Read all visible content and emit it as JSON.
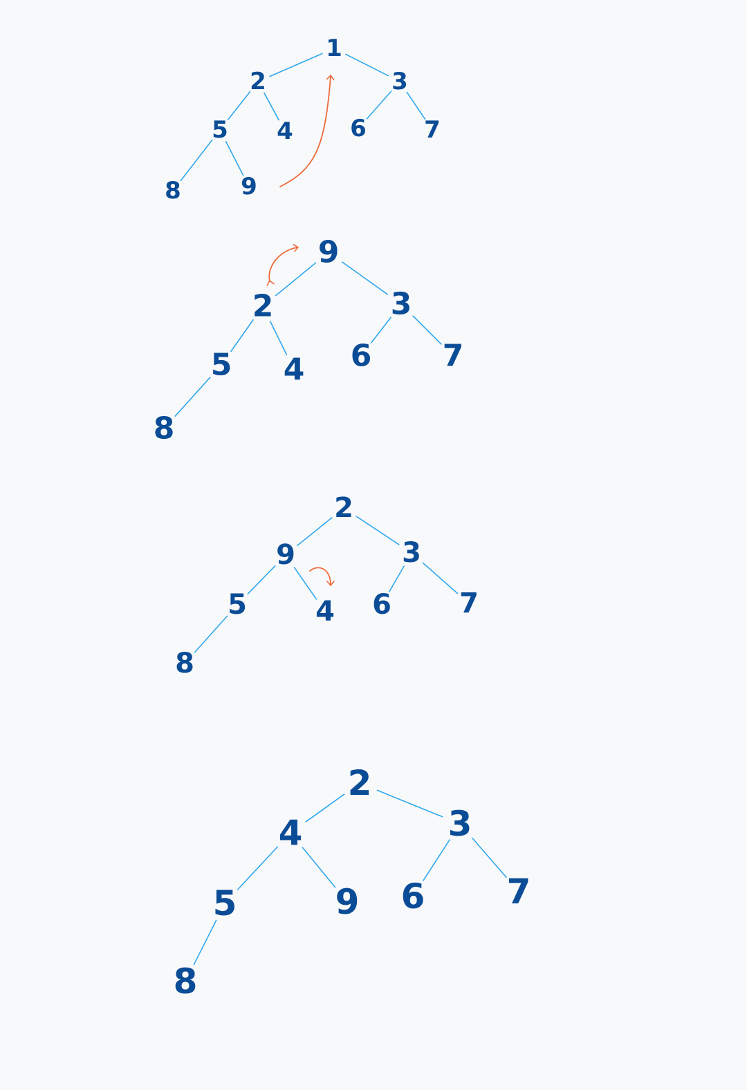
{
  "colors": {
    "background": "#f8f9fa",
    "node_text": "#0b4c96",
    "edge": "#2ea8ee",
    "arrow": "#ee6a3c"
  },
  "trees": [
    {
      "id": "tree-1",
      "nodes": [
        {
          "id": "n1",
          "label": "1"
        },
        {
          "id": "n2",
          "label": "2"
        },
        {
          "id": "n3",
          "label": "3"
        },
        {
          "id": "n5",
          "label": "5"
        },
        {
          "id": "n4",
          "label": "4"
        },
        {
          "id": "n6",
          "label": "6"
        },
        {
          "id": "n7",
          "label": "7"
        },
        {
          "id": "n8",
          "label": "8"
        },
        {
          "id": "n9",
          "label": "9"
        }
      ],
      "edges": [
        [
          "n1",
          "n2"
        ],
        [
          "n1",
          "n3"
        ],
        [
          "n2",
          "n5"
        ],
        [
          "n2",
          "n4"
        ],
        [
          "n3",
          "n6"
        ],
        [
          "n3",
          "n7"
        ],
        [
          "n5",
          "n8"
        ],
        [
          "n5",
          "n9"
        ]
      ],
      "annotation": "move-last-to-root"
    },
    {
      "id": "tree-2",
      "nodes": [
        {
          "id": "n9",
          "label": "9"
        },
        {
          "id": "n2",
          "label": "2"
        },
        {
          "id": "n3",
          "label": "3"
        },
        {
          "id": "n5",
          "label": "5"
        },
        {
          "id": "n4",
          "label": "4"
        },
        {
          "id": "n6",
          "label": "6"
        },
        {
          "id": "n7",
          "label": "7"
        },
        {
          "id": "n8",
          "label": "8"
        }
      ],
      "edges": [
        [
          "n9",
          "n2"
        ],
        [
          "n9",
          "n3"
        ],
        [
          "n2",
          "n5"
        ],
        [
          "n2",
          "n4"
        ],
        [
          "n3",
          "n6"
        ],
        [
          "n3",
          "n7"
        ],
        [
          "n5",
          "n8"
        ]
      ],
      "annotation": "swap-root-with-left-child"
    },
    {
      "id": "tree-3",
      "nodes": [
        {
          "id": "n2",
          "label": "2"
        },
        {
          "id": "n9",
          "label": "9"
        },
        {
          "id": "n3",
          "label": "3"
        },
        {
          "id": "n5",
          "label": "5"
        },
        {
          "id": "n4",
          "label": "4"
        },
        {
          "id": "n6",
          "label": "6"
        },
        {
          "id": "n7",
          "label": "7"
        },
        {
          "id": "n8",
          "label": "8"
        }
      ],
      "edges": [
        [
          "n2",
          "n9"
        ],
        [
          "n2",
          "n3"
        ],
        [
          "n9",
          "n5"
        ],
        [
          "n9",
          "n4"
        ],
        [
          "n3",
          "n6"
        ],
        [
          "n3",
          "n7"
        ],
        [
          "n5",
          "n8"
        ]
      ],
      "annotation": "swap-9-with-4"
    },
    {
      "id": "tree-4",
      "nodes": [
        {
          "id": "n2",
          "label": "2"
        },
        {
          "id": "n4",
          "label": "4"
        },
        {
          "id": "n3",
          "label": "3"
        },
        {
          "id": "n5",
          "label": "5"
        },
        {
          "id": "n9",
          "label": "9"
        },
        {
          "id": "n6",
          "label": "6"
        },
        {
          "id": "n7",
          "label": "7"
        },
        {
          "id": "n8",
          "label": "8"
        }
      ],
      "edges": [
        [
          "n2",
          "n4"
        ],
        [
          "n2",
          "n3"
        ],
        [
          "n4",
          "n5"
        ],
        [
          "n4",
          "n9"
        ],
        [
          "n3",
          "n6"
        ],
        [
          "n3",
          "n7"
        ],
        [
          "n5",
          "n8"
        ]
      ],
      "annotation": "none"
    }
  ]
}
